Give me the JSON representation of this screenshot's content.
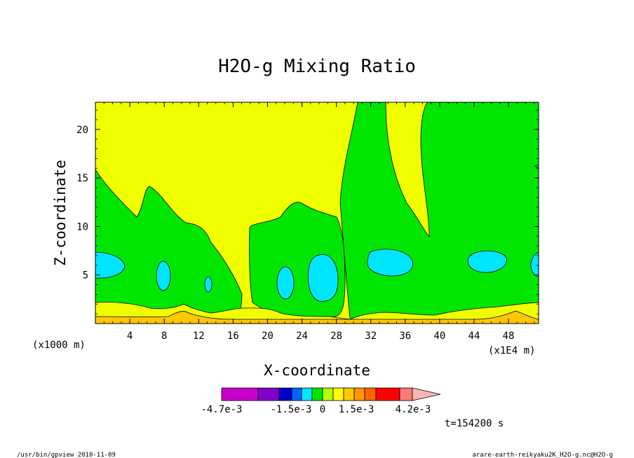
{
  "chart_data": {
    "type": "heatmap",
    "title": "H2O-g Mixing Ratio",
    "xlabel": "X-coordinate",
    "ylabel": "Z-coordinate",
    "x_unit": "(x1000 m)",
    "x_unit_right": "(x1E4 m)",
    "xlim": [
      0,
      51.5
    ],
    "ylim": [
      0,
      22.8
    ],
    "x_ticks": [
      "4",
      "8",
      "12",
      "16",
      "20",
      "24",
      "28",
      "32",
      "36",
      "40",
      "44",
      "48"
    ],
    "y_ticks": [
      "5",
      "10",
      "15",
      "20"
    ],
    "colorbar": {
      "colors": [
        "#c800c8",
        "#8200c8",
        "#0000c8",
        "#0064ff",
        "#00e6ff",
        "#00e600",
        "#b4ff00",
        "#ffff00",
        "#ffc800",
        "#ff9600",
        "#ff6400",
        "#ff0000",
        "#ff7878",
        "#ffb4b4"
      ],
      "labels": [
        "-4.7e-3",
        "-1.5e-3",
        "0",
        "1.5e-3",
        "4.2e-3"
      ]
    },
    "regions": [
      {
        "level": "0",
        "color": "#ffff00",
        "description": "background"
      },
      {
        "level": "negative small",
        "color": "#00e600"
      },
      {
        "level": "negative",
        "color": "#00e6ff"
      },
      {
        "level": "positive",
        "color": "#ffc800"
      }
    ]
  },
  "annotations": {
    "time": "t=154200 s",
    "footer_left": "/usr/bin/gpview   2010-11-09",
    "footer_right": "arare-earth-reikyaku2K_H2O-g.nc@H2O-g"
  },
  "colors": {
    "background": "#ffffff",
    "yellow": "#f0ff00",
    "green": "#00e600",
    "cyan": "#00e6ff",
    "orange": "#ffc800"
  }
}
